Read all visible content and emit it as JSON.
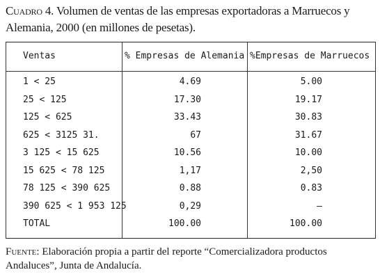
{
  "caption": {
    "label": "Cuadro 4.",
    "text": "Volumen de ventas de las empresas exportadoras a Marruecos y Alemania, 2000 (en millones de pesetas)."
  },
  "table": {
    "headers": [
      "Ventas",
      "% Empresas de Alemania",
      "%Empresas de Marruecos"
    ],
    "rows": [
      [
        "1 < 25",
        "4.69",
        "5.00"
      ],
      [
        "25 < 125",
        "17.30",
        "19.17"
      ],
      [
        "125 < 625",
        "33.43",
        "30.83"
      ],
      [
        "625 < 3125 31.",
        "67",
        "31.67"
      ],
      [
        "3 125 < 15 625",
        "10.56",
        "10.00"
      ],
      [
        "15 625 < 78 125",
        "1,17",
        "2,50"
      ],
      [
        "78 125 < 390 625",
        "0.88",
        "0.83"
      ],
      [
        "390 625 < 1 953 125",
        "0,29",
        "—"
      ],
      [
        "TOTAL",
        "100.00",
        "100.00"
      ]
    ]
  },
  "footnote": {
    "label": "Fuente:",
    "text": "Elaboración propia a partir del reporte “Comercializadora productos Andaluces”, Junta de Andalucía."
  }
}
